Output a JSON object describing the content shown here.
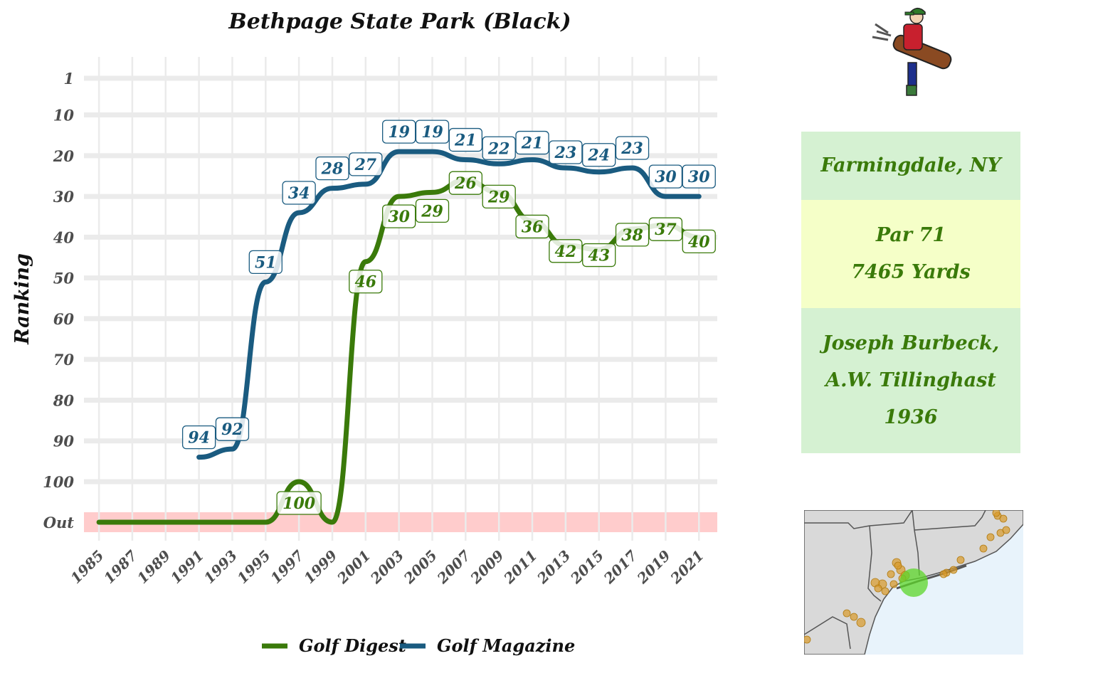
{
  "chart_data": {
    "type": "line",
    "title": "Bethpage State Park (Black)",
    "xlabel": "",
    "ylabel": "Ranking",
    "y_reversed": true,
    "y_ticks": [
      "1",
      "10",
      "20",
      "30",
      "40",
      "50",
      "60",
      "70",
      "80",
      "90",
      "100",
      "Out"
    ],
    "x_ticks": [
      "1985",
      "1987",
      "1989",
      "1991",
      "1993",
      "1995",
      "1997",
      "1999",
      "2001",
      "2003",
      "2005",
      "2007",
      "2009",
      "2011",
      "2013",
      "2015",
      "2017",
      "2019",
      "2021"
    ],
    "out_band_color": "#ffcccc",
    "series": [
      {
        "name": "Golf Digest",
        "color": "#3a7a0a",
        "x": [
          1985,
          1987,
          1989,
          1991,
          1993,
          1995,
          1997,
          1999,
          2001,
          2003,
          2005,
          2007,
          2009,
          2011,
          2013,
          2015,
          2017,
          2019,
          2021
        ],
        "values": [
          "Out",
          "Out",
          "Out",
          "Out",
          "Out",
          "Out",
          100,
          "Out",
          46,
          30,
          29,
          26,
          29,
          36,
          42,
          43,
          38,
          37,
          40
        ],
        "labels": [
          null,
          null,
          null,
          null,
          null,
          null,
          "100",
          null,
          "46",
          "30",
          "29",
          "26",
          "29",
          "36",
          "42",
          "43",
          "38",
          "37",
          "40"
        ]
      },
      {
        "name": "Golf Magazine",
        "color": "#1a5b80",
        "x": [
          1991,
          1993,
          1995,
          1997,
          1999,
          2001,
          2003,
          2005,
          2007,
          2009,
          2011,
          2013,
          2015,
          2017,
          2019,
          2021
        ],
        "values": [
          94,
          92,
          51,
          34,
          28,
          27,
          19,
          19,
          21,
          22,
          21,
          23,
          24,
          23,
          30,
          30
        ],
        "labels": [
          "94",
          "92",
          "51",
          "34",
          "28",
          "27",
          "19",
          "19",
          "21",
          "22",
          "21",
          "23",
          "24",
          "23",
          "30",
          "30"
        ]
      }
    ],
    "legend": [
      "Golf Digest",
      "Golf Magazine"
    ],
    "legend_position": "bottom"
  },
  "info": {
    "location": "Farmingdale, NY",
    "par": "Par 71",
    "yards": "7465 Yards",
    "architect_1": "Joseph Burbeck,",
    "architect_2": "A.W. Tillinghast",
    "year": "1936",
    "colors": {
      "location_bg": "#d5f1d2",
      "par_bg": "#f5ffc8",
      "architect_bg": "#d5f1d2",
      "text": "#3a7a0a"
    }
  },
  "icons": {
    "golfer": "golfer-with-bag-icon",
    "map": "northeast-us-locator-map"
  }
}
